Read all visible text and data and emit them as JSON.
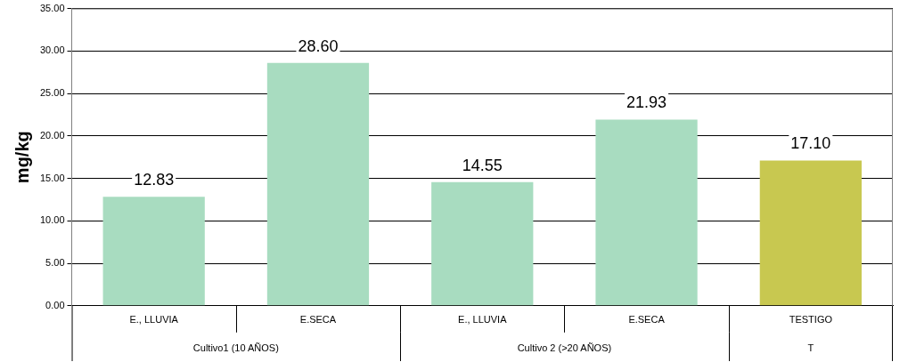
{
  "chart_data": {
    "type": "bar",
    "ylabel": "mg/kg",
    "categories": [
      "E., LLUVIA",
      "E.SECA",
      "E., LLUVIA",
      "E.SECA",
      "TESTIGO"
    ],
    "values": [
      12.83,
      28.6,
      14.55,
      21.93,
      17.1
    ],
    "value_labels": [
      "12.83",
      "28.60",
      "14.55",
      "21.93",
      "17.10"
    ],
    "colors": [
      "#a8dcc0",
      "#a8dcc0",
      "#a8dcc0",
      "#a8dcc0",
      "#c8c850"
    ],
    "ylim": [
      0,
      35
    ],
    "yticks": [
      {
        "value": 0,
        "label": "0.00"
      },
      {
        "value": 5,
        "label": "5.00"
      },
      {
        "value": 10,
        "label": "10.00"
      },
      {
        "value": 15,
        "label": "15.00"
      },
      {
        "value": 20,
        "label": "20.00"
      },
      {
        "value": 25,
        "label": "25.00"
      },
      {
        "value": 30,
        "label": "30.00"
      },
      {
        "value": 35,
        "label": "35.00"
      }
    ],
    "grid": "y",
    "annotations": [
      "Cultivo1 (10 AÑOS)",
      "Cultivo 2 (>20 AÑOS)",
      "T"
    ]
  }
}
